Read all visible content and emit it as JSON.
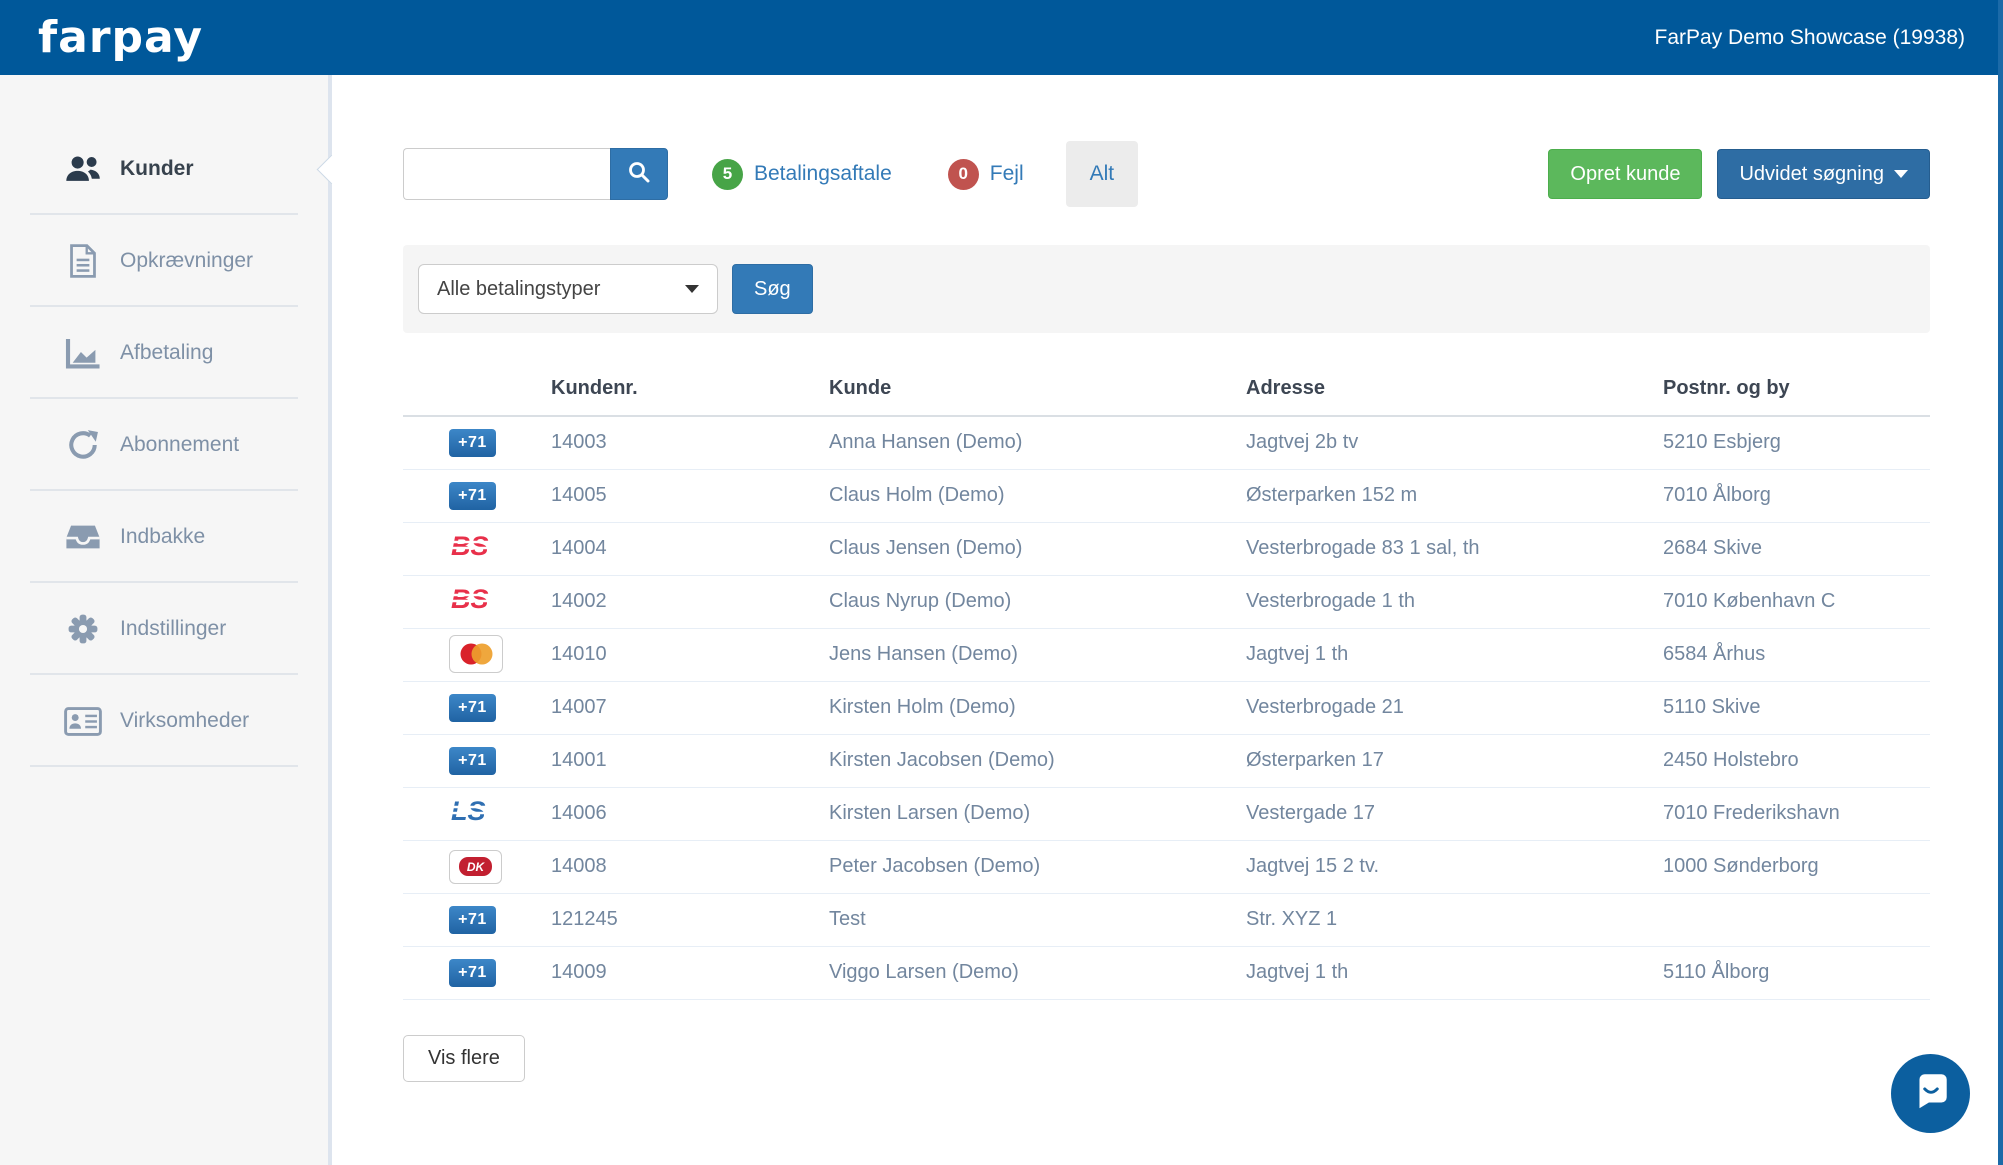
{
  "header": {
    "logo_text": "farpay",
    "account_label": "FarPay Demo Showcase (19938)",
    "brand_color": "#00589a"
  },
  "sidebar": {
    "items": [
      {
        "label": "Kunder",
        "icon": "users-icon",
        "active": true
      },
      {
        "label": "Opkrævninger",
        "icon": "document-icon",
        "active": false
      },
      {
        "label": "Afbetaling",
        "icon": "chart-icon",
        "active": false
      },
      {
        "label": "Abonnement",
        "icon": "refresh-icon",
        "active": false
      },
      {
        "label": "Indbakke",
        "icon": "inbox-icon",
        "active": false
      },
      {
        "label": "Indstillinger",
        "icon": "gear-icon",
        "active": false
      },
      {
        "label": "Virksomheder",
        "icon": "idcard-icon",
        "active": false
      }
    ]
  },
  "toolbar": {
    "search_value": "",
    "counters": [
      {
        "count": "5",
        "label": "Betalingsaftale",
        "badge_color": "#47a447"
      },
      {
        "count": "0",
        "label": "Fejl",
        "badge_color": "#c0534f"
      }
    ],
    "alt_label": "Alt",
    "create_label": "Opret kunde",
    "advanced_label": "Udvidet søgning"
  },
  "filter": {
    "payment_type_selected": "Alle betalingstyper",
    "search_label": "Søg"
  },
  "payment_icon_labels": {
    "fik71": "+71",
    "bs": "BS",
    "ls": "LS",
    "dankort": "DK"
  },
  "table": {
    "headers": [
      "",
      "Kundenr.",
      "Kunde",
      "Adresse",
      "Postnr. og by"
    ],
    "rows": [
      {
        "icon": "fik71",
        "kundenr": "14003",
        "kunde": "Anna Hansen (Demo)",
        "adresse": "Jagtvej 2b tv",
        "postnr": "5210 Esbjerg"
      },
      {
        "icon": "fik71",
        "kundenr": "14005",
        "kunde": "Claus Holm (Demo)",
        "adresse": "Østerparken 152 m",
        "postnr": "7010 Ålborg"
      },
      {
        "icon": "bs",
        "kundenr": "14004",
        "kunde": "Claus Jensen (Demo)",
        "adresse": "Vesterbrogade 83 1 sal, th",
        "postnr": "2684 Skive"
      },
      {
        "icon": "bs",
        "kundenr": "14002",
        "kunde": "Claus Nyrup (Demo)",
        "adresse": "Vesterbrogade 1 th",
        "postnr": "7010 København C"
      },
      {
        "icon": "mastercard",
        "kundenr": "14010",
        "kunde": "Jens Hansen (Demo)",
        "adresse": "Jagtvej 1 th",
        "postnr": "6584 Århus"
      },
      {
        "icon": "fik71",
        "kundenr": "14007",
        "kunde": "Kirsten Holm (Demo)",
        "adresse": "Vesterbrogade 21",
        "postnr": "5110 Skive"
      },
      {
        "icon": "fik71",
        "kundenr": "14001",
        "kunde": "Kirsten Jacobsen (Demo)",
        "adresse": "Østerparken 17",
        "postnr": "2450 Holstebro"
      },
      {
        "icon": "ls",
        "kundenr": "14006",
        "kunde": "Kirsten Larsen (Demo)",
        "adresse": "Vestergade 17",
        "postnr": "7010 Frederikshavn"
      },
      {
        "icon": "dankort",
        "kundenr": "14008",
        "kunde": "Peter Jacobsen (Demo)",
        "adresse": "Jagtvej 15 2 tv.",
        "postnr": "1000 Sønderborg"
      },
      {
        "icon": "fik71",
        "kundenr": "121245",
        "kunde": "Test",
        "adresse": "Str. XYZ 1",
        "postnr": ""
      },
      {
        "icon": "fik71",
        "kundenr": "14009",
        "kunde": "Viggo Larsen (Demo)",
        "adresse": "Jagtvej 1 th",
        "postnr": "5110 Ålborg"
      }
    ]
  },
  "footer": {
    "more_label": "Vis flere"
  }
}
